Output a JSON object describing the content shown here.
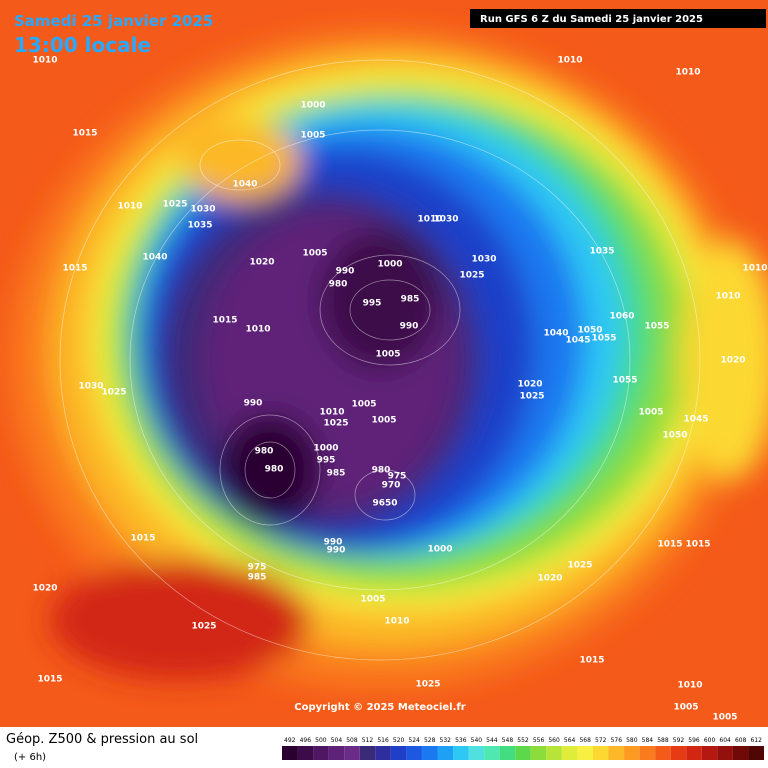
{
  "header": {
    "date": "Samedi 25 janvier 2025",
    "time": "13:00 locale",
    "run": "Run GFS 6 Z du Samedi 25 janvier 2025"
  },
  "copyright": "Copyright © 2025 Meteociel.fr",
  "footer": {
    "title": "Géop. Z500 & pression au sol",
    "step": "(+ 6h)"
  },
  "pressure_labels": [
    "1010",
    "1010",
    "1010",
    "1015",
    "1000",
    "1005",
    "1040",
    "1010",
    "1025",
    "1030",
    "1035",
    "1040",
    "1015",
    "1020",
    "1005",
    "990",
    "980",
    "1000",
    "1010",
    "1030",
    "1030",
    "1025",
    "1035",
    "1010",
    "995",
    "985",
    "990",
    "1015",
    "1010",
    "1005",
    "1040",
    "1050",
    "1045",
    "1055",
    "1060",
    "1055",
    "1010",
    "1020",
    "1030",
    "1025",
    "1020",
    "1025",
    "1055",
    "990",
    "1010",
    "1005",
    "1025",
    "1005",
    "1005",
    "1045",
    "1050",
    "1000",
    "995",
    "985",
    "980",
    "980",
    "980",
    "975",
    "970",
    "9650",
    "1015",
    "990",
    "990",
    "1000",
    "975",
    "985",
    "1020",
    "1025",
    "1015",
    "1015",
    "1020",
    "1005",
    "1010",
    "1025",
    "1015",
    "1015",
    "1010",
    "1025",
    "1005",
    "1005"
  ],
  "scale": {
    "values": [
      492,
      496,
      500,
      504,
      508,
      512,
      516,
      520,
      524,
      528,
      532,
      536,
      540,
      544,
      548,
      552,
      556,
      560,
      564,
      568,
      572,
      576,
      580,
      584,
      588,
      592,
      596,
      600,
      604,
      608,
      612
    ],
    "colors": [
      "#2a0030",
      "#3d0a4a",
      "#4e1663",
      "#5e2278",
      "#6a2c88",
      "#3a2a78",
      "#2e2e9e",
      "#1f3fc8",
      "#1c58e0",
      "#1a78f0",
      "#1ea0f5",
      "#2ec8f5",
      "#50e0e0",
      "#4ee8b0",
      "#44dc80",
      "#5cd84a",
      "#8cdc3a",
      "#b8e43a",
      "#e0ec3a",
      "#f8f040",
      "#fcd830",
      "#fcb828",
      "#fc9a22",
      "#fa7a1e",
      "#f45a1a",
      "#e63c16",
      "#d22612",
      "#b41810",
      "#94100c",
      "#700a08",
      "#500604"
    ]
  }
}
